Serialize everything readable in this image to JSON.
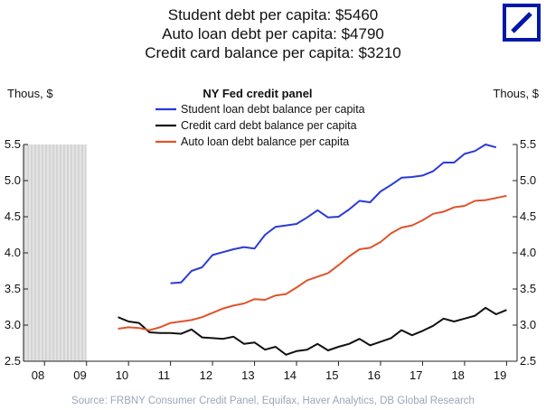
{
  "headline": [
    "Student debt per capita: $5460",
    "Auto loan debt per capita: $4790",
    "Credit card balance per capita: $3210"
  ],
  "logo": {
    "name": "deutsche-bank-logo",
    "color": "#0018a8"
  },
  "chart_data": {
    "type": "line",
    "title": "NY Fed credit panel",
    "ylabel_left": "Thous, $",
    "ylabel_right": "Thous, $",
    "source": "Source: FRBNY Consumer Credit Panel, Equifax, Haver Analytics, DB Global Research",
    "xlim": [
      2008,
      2019.75
    ],
    "ylim": [
      2.5,
      5.5
    ],
    "x_ticks": [
      2008,
      2009,
      2010,
      2011,
      2012,
      2013,
      2014,
      2015,
      2016,
      2017,
      2018,
      2019
    ],
    "x_tick_labels": [
      "08",
      "09",
      "10",
      "11",
      "12",
      "13",
      "14",
      "15",
      "16",
      "17",
      "18",
      "19"
    ],
    "y_ticks": [
      2.5,
      3.0,
      3.5,
      4.0,
      4.5,
      5.0,
      5.5
    ],
    "y_tick_labels": [
      "2.5",
      "3.0",
      "3.5",
      "4.0",
      "4.5",
      "5.0",
      "5.5"
    ],
    "recession_band": [
      2008,
      2009.5
    ],
    "legend_position": "top-center",
    "series": [
      {
        "name": "Student loan debt balance per capita",
        "color": "#2a3bd6",
        "x": [
          2011.5,
          2011.75,
          2012.0,
          2012.25,
          2012.5,
          2012.75,
          2013.0,
          2013.25,
          2013.5,
          2013.75,
          2014.0,
          2014.25,
          2014.5,
          2014.75,
          2015.0,
          2015.25,
          2015.5,
          2015.75,
          2016.0,
          2016.25,
          2016.5,
          2016.75,
          2017.0,
          2017.25,
          2017.5,
          2017.75,
          2018.0,
          2018.25,
          2018.5,
          2018.75,
          2019.0,
          2019.25
        ],
        "y": [
          3.58,
          3.59,
          3.75,
          3.8,
          3.97,
          4.01,
          4.05,
          4.08,
          4.06,
          4.25,
          4.36,
          4.38,
          4.4,
          4.49,
          4.59,
          4.49,
          4.5,
          4.6,
          4.72,
          4.7,
          4.85,
          4.94,
          5.04,
          5.05,
          5.07,
          5.13,
          5.25,
          5.25,
          5.37,
          5.41,
          5.5,
          5.46
        ]
      },
      {
        "name": "Credit card debt balance per capita",
        "color": "#111111",
        "x": [
          2010.25,
          2010.5,
          2010.75,
          2011.0,
          2011.25,
          2011.5,
          2011.75,
          2012.0,
          2012.25,
          2012.5,
          2012.75,
          2013.0,
          2013.25,
          2013.5,
          2013.75,
          2014.0,
          2014.25,
          2014.5,
          2014.75,
          2015.0,
          2015.25,
          2015.5,
          2015.75,
          2016.0,
          2016.25,
          2016.5,
          2016.75,
          2017.0,
          2017.25,
          2017.5,
          2017.75,
          2018.0,
          2018.25,
          2018.5,
          2018.75,
          2019.0,
          2019.25
        ],
        "y": [
          3.11,
          3.05,
          3.03,
          2.9,
          2.89,
          2.89,
          2.88,
          2.94,
          2.83,
          2.82,
          2.81,
          2.84,
          2.74,
          2.76,
          2.66,
          2.7,
          2.59,
          2.64,
          2.66,
          2.74,
          2.65,
          2.7,
          2.74,
          2.81,
          2.72,
          2.77,
          2.82,
          2.93,
          2.86,
          2.92,
          2.99,
          3.09,
          3.05,
          3.09,
          3.13,
          3.24,
          3.15
        ],
        "y_last": 3.21
      },
      {
        "name": "Auto loan debt balance per capita",
        "color": "#e0532b",
        "x": [
          2010.25,
          2010.5,
          2010.75,
          2011.0,
          2011.25,
          2011.5,
          2011.75,
          2012.0,
          2012.25,
          2012.5,
          2012.75,
          2013.0,
          2013.25,
          2013.5,
          2013.75,
          2014.0,
          2014.25,
          2014.5,
          2014.75,
          2015.0,
          2015.25,
          2015.5,
          2015.75,
          2016.0,
          2016.25,
          2016.5,
          2016.75,
          2017.0,
          2017.25,
          2017.5,
          2017.75,
          2018.0,
          2018.25,
          2018.5,
          2018.75,
          2019.0,
          2019.25
        ],
        "y": [
          2.95,
          2.97,
          2.96,
          2.93,
          2.97,
          3.03,
          3.05,
          3.07,
          3.11,
          3.17,
          3.23,
          3.27,
          3.3,
          3.36,
          3.35,
          3.41,
          3.43,
          3.52,
          3.62,
          3.67,
          3.72,
          3.83,
          3.95,
          4.05,
          4.07,
          4.15,
          4.27,
          4.35,
          4.38,
          4.45,
          4.54,
          4.57,
          4.63,
          4.65,
          4.72,
          4.73,
          4.76
        ],
        "y_last": 4.79
      }
    ]
  }
}
